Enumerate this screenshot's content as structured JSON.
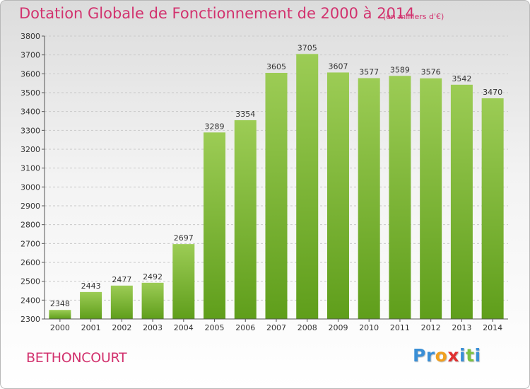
{
  "header": {
    "title": "Dotation Globale de Fonctionnement de 2000 à 2014",
    "unit": "(en milliers d'€)"
  },
  "footer": {
    "commune": "BETHONCOURT",
    "logo_letters": [
      {
        "ch": "P",
        "color": "#3a8fd6"
      },
      {
        "ch": "r",
        "color": "#3a8fd6"
      },
      {
        "ch": "o",
        "color": "#f0a020"
      },
      {
        "ch": "x",
        "color": "#e03030"
      },
      {
        "ch": "i",
        "color": "#3a8fd6"
      },
      {
        "ch": "t",
        "color": "#7cc242"
      },
      {
        "ch": "i",
        "color": "#3a8fd6"
      }
    ]
  },
  "colors": {
    "accent": "#d2326e",
    "bar_light": "#9ccc55",
    "bar_dark": "#5f9e1b"
  },
  "chart_data": {
    "type": "bar",
    "categories": [
      "2000",
      "2001",
      "2002",
      "2003",
      "2004",
      "2005",
      "2006",
      "2007",
      "2008",
      "2009",
      "2010",
      "2011",
      "2012",
      "2013",
      "2014"
    ],
    "values": [
      2348,
      2443,
      2477,
      2492,
      2697,
      3289,
      3354,
      3605,
      3705,
      3607,
      3577,
      3589,
      3576,
      3542,
      3470
    ],
    "ylim": [
      2300,
      3800
    ],
    "yticks": [
      2300,
      2400,
      2500,
      2600,
      2700,
      2800,
      2900,
      3000,
      3100,
      3200,
      3300,
      3400,
      3500,
      3600,
      3700,
      3800
    ],
    "grid": true,
    "title": "Dotation Globale de Fonctionnement de 2000 à 2014",
    "xlabel": "",
    "ylabel": ""
  }
}
